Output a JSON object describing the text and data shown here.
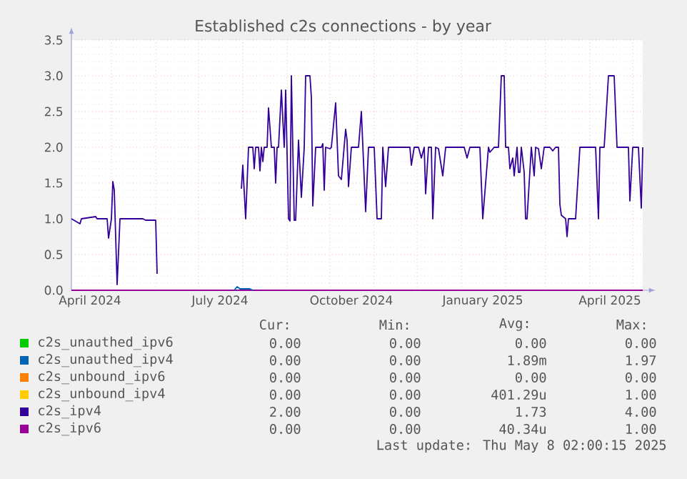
{
  "chart_data": {
    "type": "line",
    "title": "Established c2s connections - by year",
    "xlim": [
      "2024-04-03",
      "2025-05-08"
    ],
    "xticks": [
      {
        "value": "2024-05-01",
        "label": null
      },
      {
        "value": "2024-06-01",
        "label": null
      },
      {
        "value": "2024-07-01",
        "label": null
      },
      {
        "value": "2024-08-01",
        "label": null
      },
      {
        "value": "2024-09-01",
        "label": null
      },
      {
        "value": "2024-10-01",
        "label": null
      },
      {
        "value": "2024-11-01",
        "label": null
      },
      {
        "value": "2024-12-01",
        "label": null
      },
      {
        "value": "2025-01-01",
        "label": null
      },
      {
        "value": "2025-02-01",
        "label": null
      },
      {
        "value": "2025-03-01",
        "label": null
      },
      {
        "value": "2025-04-01",
        "label": null
      },
      {
        "value": "2025-05-01",
        "label": null
      },
      {
        "value": "2024-04-16",
        "label": "April 2024"
      },
      {
        "value": "2024-07-16",
        "label": "July 2024"
      },
      {
        "value": "2024-10-16",
        "label": "October 2024"
      },
      {
        "value": "2025-01-16",
        "label": "January 2025"
      },
      {
        "value": "2025-04-15",
        "label": "April 2025"
      }
    ],
    "ylim": [
      0,
      3.5
    ],
    "yticks": [
      {
        "value": 0,
        "label": "0.0"
      },
      {
        "value": 0.5,
        "label": "0.5"
      },
      {
        "value": 1,
        "label": "1.0"
      },
      {
        "value": 1.5,
        "label": "1.5"
      },
      {
        "value": 2,
        "label": "2.0"
      },
      {
        "value": 2.5,
        "label": "2.5"
      },
      {
        "value": 3,
        "label": "3.0"
      },
      {
        "value": 3.5,
        "label": "3.5"
      }
    ],
    "grid": true,
    "legend": "bottom",
    "series": [
      {
        "name": "c2s_unauthed_ipv6",
        "color": "#00cc00"
      },
      {
        "name": "c2s_unauthed_ipv4",
        "color": "#0066b3",
        "x": [
          "2024-07-26",
          "2024-07-28",
          "2024-07-30",
          "2024-08-06",
          "2024-08-08"
        ],
        "values": [
          0,
          0.05,
          0.02,
          0.02,
          0
        ]
      },
      {
        "name": "c2s_unbound_ipv6",
        "color": "#ff8000"
      },
      {
        "name": "c2s_unbound_ipv4",
        "color": "#ffcc00"
      },
      {
        "name": "c2s_ipv4",
        "color": "#330099",
        "x": [
          "2024-04-03",
          "2024-04-09",
          "2024-04-10",
          "2024-04-20",
          "2024-04-21",
          "2024-04-28",
          "2024-04-29",
          "2024-05-01",
          "2024-05-02",
          "2024-05-03",
          "2024-05-05",
          "2024-05-07",
          "2024-05-23",
          "2024-05-25",
          "2024-06-01",
          "2024-06-02",
          "2024-07-01",
          "2024-07-31",
          "2024-08-01",
          "2024-08-03",
          "2024-08-05",
          "2024-08-08",
          "2024-08-09",
          "2024-08-10",
          "2024-08-12",
          "2024-08-13",
          "2024-08-14",
          "2024-08-15",
          "2024-08-16",
          "2024-08-18",
          "2024-08-19",
          "2024-08-21",
          "2024-08-23",
          "2024-08-24",
          "2024-08-25",
          "2024-08-26",
          "2024-08-28",
          "2024-08-30",
          "2024-08-31",
          "2024-09-02",
          "2024-09-03",
          "2024-09-04",
          "2024-09-06",
          "2024-09-07",
          "2024-09-09",
          "2024-09-11",
          "2024-09-13",
          "2024-09-14",
          "2024-09-17",
          "2024-09-18",
          "2024-09-19",
          "2024-09-21",
          "2024-09-25",
          "2024-09-26",
          "2024-09-27",
          "2024-09-28",
          "2024-10-01",
          "2024-10-02",
          "2024-10-05",
          "2024-10-07",
          "2024-10-09",
          "2024-10-12",
          "2024-10-13",
          "2024-10-14",
          "2024-10-16",
          "2024-10-21",
          "2024-10-23",
          "2024-10-26",
          "2024-10-28",
          "2024-11-01",
          "2024-11-03",
          "2024-11-06",
          "2024-11-07",
          "2024-11-09",
          "2024-11-11",
          "2024-11-22",
          "2024-11-26",
          "2024-11-27",
          "2024-11-29",
          "2024-12-02",
          "2024-12-04",
          "2024-12-06",
          "2024-12-07",
          "2024-12-09",
          "2024-12-11",
          "2024-12-12",
          "2024-12-14",
          "2024-12-16",
          "2024-12-19",
          "2024-12-21",
          "2025-01-03",
          "2025-01-05",
          "2025-01-07",
          "2025-01-14",
          "2025-01-16",
          "2025-01-18",
          "2025-01-20",
          "2025-01-21",
          "2025-01-24",
          "2025-01-27",
          "2025-01-29",
          "2025-01-31",
          "2025-02-01",
          "2025-02-03",
          "2025-02-04",
          "2025-02-06",
          "2025-02-07",
          "2025-02-09",
          "2025-02-10",
          "2025-02-11",
          "2025-02-12",
          "2025-02-14",
          "2025-02-15",
          "2025-02-16",
          "2025-02-19",
          "2025-02-21",
          "2025-02-22",
          "2025-02-24",
          "2025-02-26",
          "2025-02-28",
          "2025-03-04",
          "2025-03-06",
          "2025-03-08",
          "2025-03-10",
          "2025-03-11",
          "2025-03-12",
          "2025-03-15",
          "2025-03-16",
          "2025-03-17",
          "2025-03-22",
          "2025-03-25",
          "2025-04-05",
          "2025-04-07",
          "2025-04-08",
          "2025-04-11",
          "2025-04-14",
          "2025-04-18",
          "2025-04-20",
          "2025-04-28",
          "2025-04-29",
          "2025-05-01",
          "2025-05-05",
          "2025-05-07",
          "2025-05-08"
        ],
        "values": [
          1.0,
          0.93,
          1.0,
          1.03,
          1.0,
          1.0,
          0.73,
          1.0,
          1.52,
          1.4,
          0.08,
          1.0,
          1.0,
          0.98,
          0.98,
          0.23,
          null,
          1.42,
          1.75,
          1.0,
          2.0,
          2.0,
          1.7,
          2.0,
          2.0,
          1.67,
          2.0,
          1.8,
          2.0,
          2.0,
          2.55,
          2.0,
          2.0,
          1.5,
          2.0,
          2.0,
          2.8,
          2.0,
          2.8,
          1.0,
          0.97,
          3.0,
          0.98,
          0.98,
          2.1,
          1.3,
          2.0,
          3.0,
          3.0,
          2.7,
          1.18,
          2.0,
          2.0,
          2.05,
          1.4,
          2.0,
          1.98,
          2.0,
          2.62,
          1.6,
          1.55,
          2.25,
          2.1,
          1.45,
          2.0,
          2.0,
          2.5,
          1.1,
          2.0,
          2.0,
          1.0,
          1.0,
          2.0,
          1.45,
          2.0,
          2.0,
          2.0,
          1.75,
          2.0,
          2.0,
          1.85,
          2.0,
          1.35,
          2.0,
          2.0,
          1.0,
          2.0,
          1.98,
          1.6,
          2.0,
          2.0,
          1.85,
          2.0,
          2.0,
          1.0,
          1.5,
          2.0,
          1.93,
          2.0,
          2.0,
          3.0,
          3.0,
          2.0,
          2.0,
          1.7,
          1.85,
          1.6,
          2.0,
          1.65,
          1.65,
          2.0,
          1.65,
          1.0,
          1.0,
          2.0,
          1.6,
          2.0,
          1.98,
          1.7,
          2.0,
          2.0,
          1.95,
          2.0,
          2.0,
          1.2,
          1.05,
          1.0,
          0.75,
          1.0,
          1.0,
          2.0,
          2.0,
          1.0,
          2.0,
          2.0,
          3.0,
          3.0,
          2.0,
          2.0,
          1.25,
          2.0,
          2.0,
          1.15,
          2.0
        ]
      },
      {
        "name": "c2s_ipv6",
        "color": "#990099",
        "x": [
          "2024-04-03",
          "2025-05-08"
        ],
        "values": [
          0,
          0
        ]
      }
    ],
    "annotations": [
      "Cur:",
      "Min:",
      "Avg:",
      "Max:",
      "0.00",
      "0.00",
      "0.00",
      "0.00",
      "0.00",
      "0.00",
      "1.89m",
      "1.97",
      "0.00",
      "0.00",
      "0.00",
      "0.00",
      "0.00",
      "0.00",
      "401.29u",
      "1.00",
      "2.00",
      "0.00",
      "1.73",
      "4.00",
      "0.00",
      "0.00",
      "40.34u",
      "1.00",
      "Last update: Thu May  8 02:00:15 2025"
    ]
  }
}
